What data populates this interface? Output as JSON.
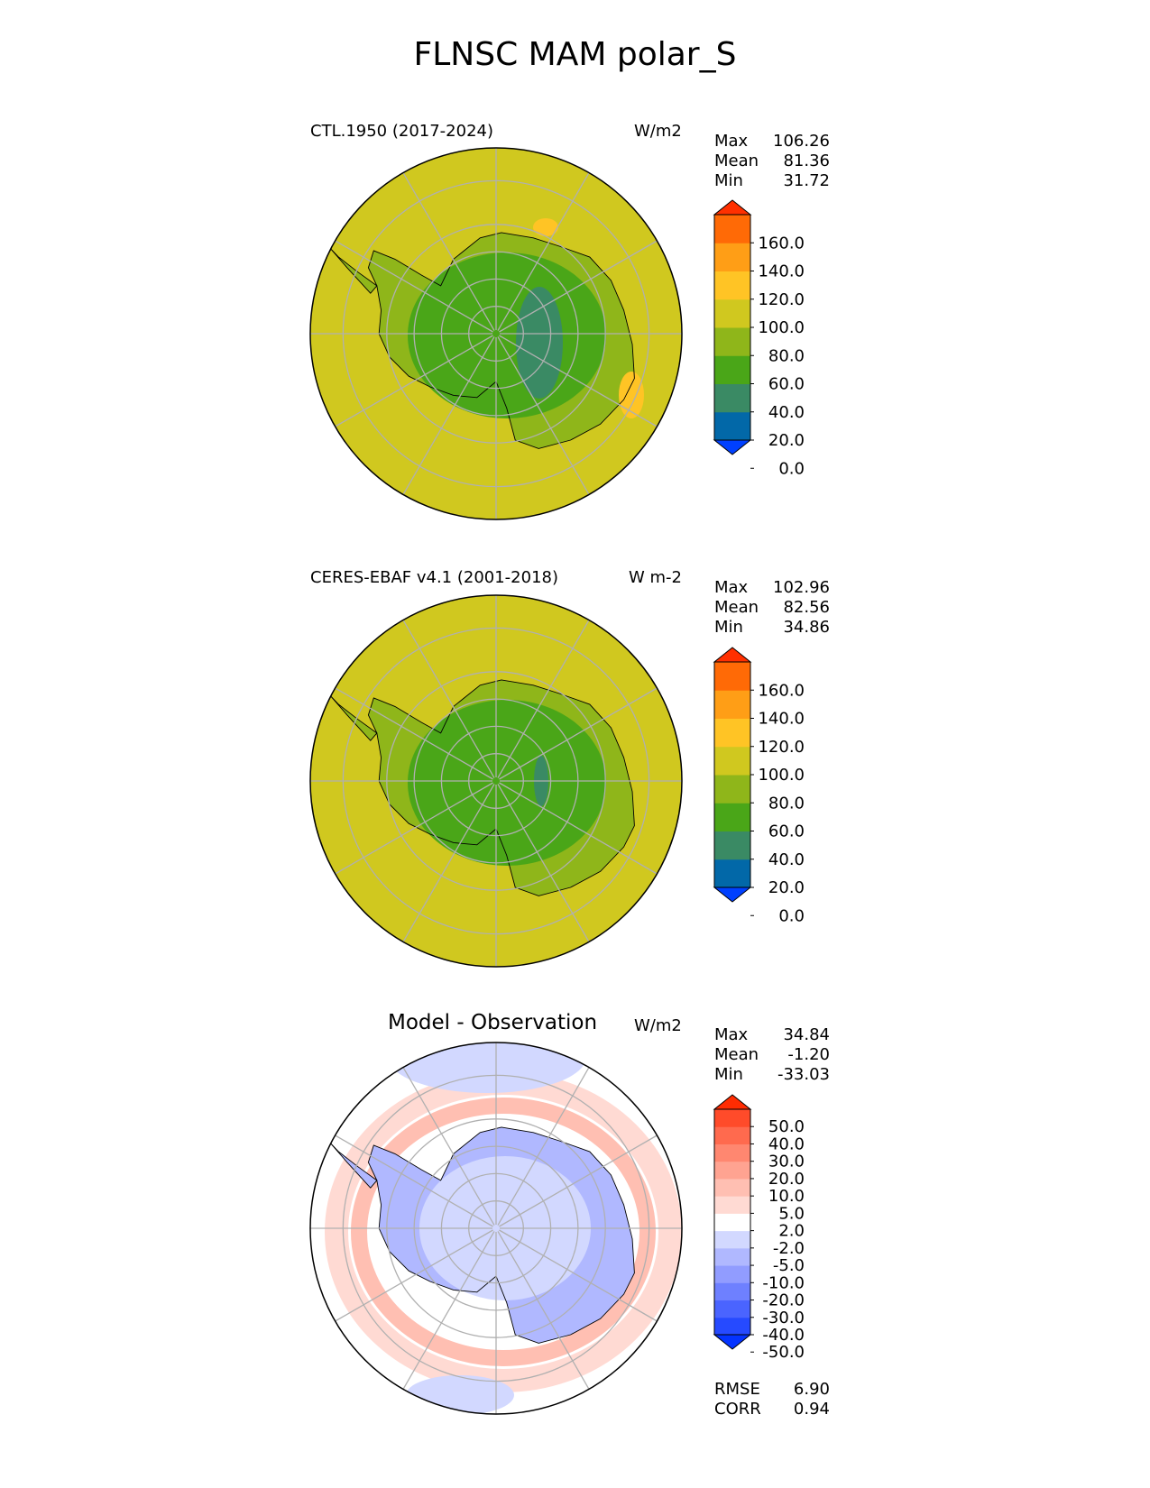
{
  "figure_title": "FLNSC MAM polar_S",
  "panels": [
    {
      "left_title": "CTL.1950 (2017-2024)",
      "units": "W/m2",
      "stats": [
        {
          "label": "Max",
          "value": "106.26"
        },
        {
          "label": "Mean",
          "value": "81.36"
        },
        {
          "label": "Min",
          "value": "31.72"
        }
      ]
    },
    {
      "left_title": "CERES-EBAF v4.1 (2001-2018)",
      "units": "W m-2",
      "stats": [
        {
          "label": "Max",
          "value": "102.96"
        },
        {
          "label": "Mean",
          "value": "82.56"
        },
        {
          "label": "Min",
          "value": "34.86"
        }
      ]
    },
    {
      "center_title": "Model - Observation",
      "units": "W/m2",
      "stats": [
        {
          "label": "Max",
          "value": "34.84"
        },
        {
          "label": "Mean",
          "value": "-1.20"
        },
        {
          "label": "Min",
          "value": "-33.03"
        }
      ],
      "metrics": [
        {
          "label": "RMSE",
          "value": "6.90"
        },
        {
          "label": "CORR",
          "value": "0.94"
        }
      ]
    }
  ],
  "chart_data": [
    {
      "type": "heatmap",
      "projection": "south polar stereographic",
      "title": "CTL.1950 (2017-2024)",
      "units": "W/m2",
      "colorbar": {
        "extend": "both",
        "ticks": [
          "160.0",
          "140.0",
          "120.0",
          "100.0",
          "80.0",
          "60.0",
          "40.0",
          "20.0",
          "0.0"
        ],
        "colors": [
          "#0040ff",
          "#0268a8",
          "#3a8a64",
          "#4aa618",
          "#8fb61a",
          "#d0c81f",
          "#ffc425",
          "#ff9e16",
          "#ff6a06",
          "#ff3000"
        ]
      },
      "field_summary": {
        "ocean_value_range": [
          80,
          100
        ],
        "interior_value_range": [
          20,
          80
        ]
      }
    },
    {
      "type": "heatmap",
      "projection": "south polar stereographic",
      "title": "CERES-EBAF v4.1 (2001-2018)",
      "units": "W m-2",
      "colorbar": {
        "extend": "both",
        "ticks": [
          "160.0",
          "140.0",
          "120.0",
          "100.0",
          "80.0",
          "60.0",
          "40.0",
          "20.0",
          "0.0"
        ],
        "colors": [
          "#0040ff",
          "#0268a8",
          "#3a8a64",
          "#4aa618",
          "#8fb61a",
          "#d0c81f",
          "#ffc425",
          "#ff9e16",
          "#ff6a06",
          "#ff3000"
        ]
      },
      "field_summary": {
        "ocean_value_range": [
          80,
          100
        ],
        "interior_value_range": [
          40,
          80
        ]
      }
    },
    {
      "type": "heatmap",
      "projection": "south polar stereographic",
      "title": "Model - Observation",
      "units": "W/m2",
      "colorbar": {
        "extend": "both",
        "ticks": [
          "50.0",
          "40.0",
          "30.0",
          "20.0",
          "10.0",
          "5.0",
          "2.0",
          "-2.0",
          "-5.0",
          "-10.0",
          "-20.0",
          "-30.0",
          "-40.0",
          "-50.0"
        ],
        "colors": [
          "#0433ff",
          "#264aff",
          "#4a64ff",
          "#6e80ff",
          "#919cff",
          "#b0b8ff",
          "#d2d8ff",
          "#ffffff",
          "#ffdad3",
          "#ffbfb2",
          "#ffa391",
          "#ff8770",
          "#ff6a4e",
          "#ff4b2a",
          "#ff2c02"
        ]
      },
      "field_summary": {
        "continent_bias": "negative",
        "coastal_ring_bias": "positive"
      }
    }
  ]
}
